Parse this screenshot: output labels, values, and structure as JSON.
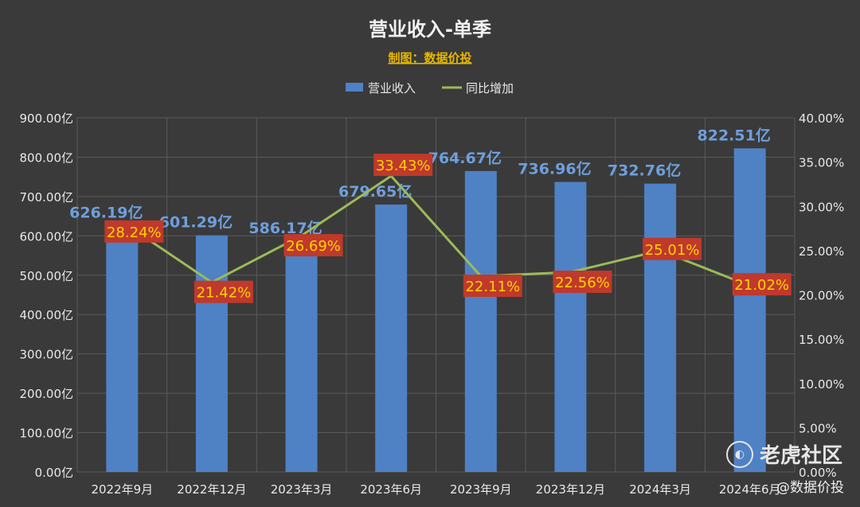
{
  "chart_data": {
    "type": "bar",
    "title": "营业收入-单季",
    "subtitle": "制图：数据价投",
    "categories": [
      "2022年9月",
      "2022年12月",
      "2023年3月",
      "2023年6月",
      "2023年9月",
      "2023年12月",
      "2024年3月",
      "2024年6月"
    ],
    "series": [
      {
        "name": "营业收入",
        "type": "bar",
        "axis": "left",
        "values": [
          626.19,
          601.29,
          586.17,
          679.65,
          764.67,
          736.96,
          732.76,
          822.51
        ],
        "labels": [
          "626.19亿",
          "601.29亿",
          "586.17亿",
          "679.65亿",
          "764.67亿",
          "736.96亿",
          "732.76亿",
          "822.51亿"
        ],
        "color": "#4f81c5"
      },
      {
        "name": "同比增加",
        "type": "line",
        "axis": "right",
        "values": [
          28.24,
          21.42,
          26.69,
          33.43,
          22.11,
          22.56,
          25.01,
          21.02
        ],
        "labels": [
          "28.24%",
          "21.42%",
          "26.69%",
          "33.43%",
          "22.11%",
          "22.56%",
          "25.01%",
          "21.02%"
        ],
        "color": "#9bbb59"
      }
    ],
    "y_left": {
      "min": 0,
      "max": 900,
      "unit": "亿",
      "ticks": [
        "0.00亿",
        "100.00亿",
        "200.00亿",
        "300.00亿",
        "400.00亿",
        "500.00亿",
        "600.00亿",
        "700.00亿",
        "800.00亿",
        "900.00亿"
      ]
    },
    "y_right": {
      "min": 0,
      "max": 40,
      "unit": "%",
      "ticks": [
        "0.00%",
        "5.00%",
        "10.00%",
        "15.00%",
        "20.00%",
        "25.00%",
        "30.00%",
        "35.00%",
        "40.00%"
      ]
    },
    "grid": true,
    "legend_position": "top-center",
    "colors": {
      "background": "#3a3a3a",
      "grid": "#5a5a5a",
      "subtitle": "#e6b800",
      "bar_label": "#6f9fdc",
      "pct_label_bg": "#c0392b",
      "pct_label_text": "#ffd400"
    }
  },
  "watermark": {
    "text": "老虎社区",
    "icon": "tiger-logo-icon"
  },
  "source_tag": "@数据价投"
}
